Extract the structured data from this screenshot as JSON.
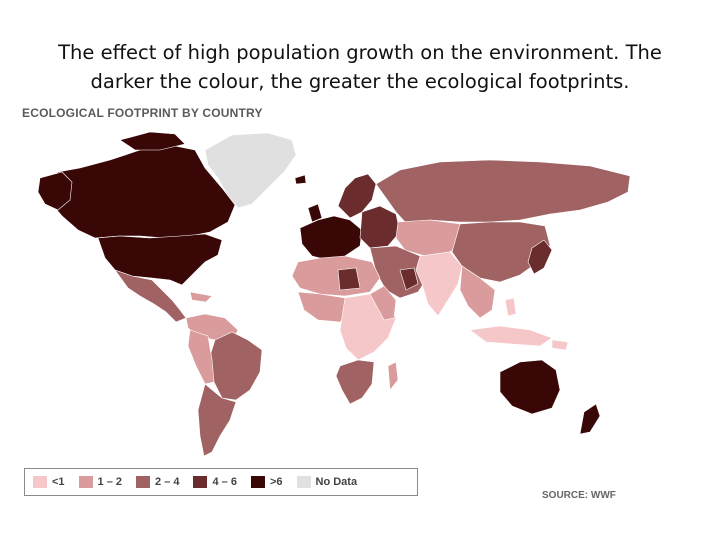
{
  "caption": {
    "line1": "The effect of high population growth on the environment. The",
    "line2": "darker the colour, the greater the ecological footprints."
  },
  "map": {
    "title": "ECOLOGICAL FOOTPRINT BY COUNTRY",
    "source": "SOURCE: WWF",
    "colors": {
      "lt1": "#f6c7c8",
      "c1_2": "#d99b9c",
      "c2_4": "#a06262",
      "c4_6": "#6a2c2c",
      "gt6": "#3a0707",
      "nodata": "#e0e0e0"
    }
  },
  "legend": {
    "items": [
      {
        "label": "<1",
        "color": "#f6c7c8"
      },
      {
        "label": "1 – 2",
        "color": "#d99b9c"
      },
      {
        "label": "2 – 4",
        "color": "#a06262"
      },
      {
        "label": "4 – 6",
        "color": "#6a2c2c"
      },
      {
        "label": ">6",
        "color": "#3a0707"
      },
      {
        "label": "No Data",
        "color": "#e0e0e0"
      }
    ]
  }
}
